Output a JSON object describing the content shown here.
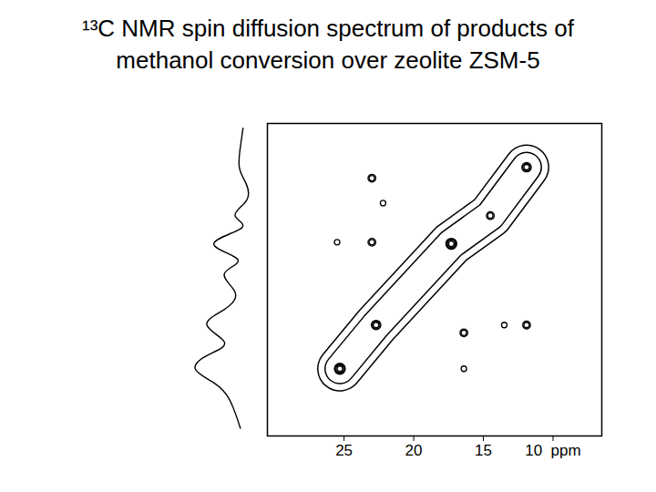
{
  "chart_data": {
    "type": "contour",
    "title": "¹³C NMR spin diffusion spectrum of products of methanol conversion over zeolite ZSM-5",
    "color": "#000000",
    "xlim": [
      30.5,
      6.5
    ],
    "ylim": [
      29.3,
      9.3
    ],
    "xticks": [
      25,
      20,
      15,
      {
        "value": 10,
        "label": "10  ppm"
      }
    ],
    "tick_labels": "x",
    "diagonal_peaks": {
      "x": [
        25.3,
        22.7,
        17.3,
        14.5,
        11.9
      ],
      "y": [
        25.0,
        22.2,
        17.0,
        15.2,
        12.1
      ],
      "levels": [
        4,
        3,
        4,
        2,
        3
      ]
    },
    "cross_peaks": {
      "x": [
        23.0,
        22.2,
        25.5,
        23.0,
        16.4,
        13.5,
        11.9,
        16.4
      ],
      "y": [
        12.8,
        14.4,
        16.9,
        16.9,
        22.7,
        22.2,
        22.2,
        25.0
      ],
      "levels": [
        2,
        1,
        1,
        2,
        2,
        1,
        2,
        1
      ]
    },
    "projection": {
      "y": [
        9.6,
        10.8,
        12.1,
        13.1,
        14.2,
        15.2,
        16.0,
        17.0,
        18.0,
        18.9,
        20.1,
        21.2,
        22.2,
        23.3,
        24.1,
        25.0,
        25.9,
        27.0,
        28.8
      ],
      "values": [
        1.5,
        2,
        2.2,
        1.0,
        0.8,
        3,
        1.8,
        7,
        2.5,
        5,
        3,
        5,
        8.3,
        5,
        8,
        10.5,
        7,
        4,
        2
      ],
      "xlim": [
        12,
        0
      ]
    }
  }
}
